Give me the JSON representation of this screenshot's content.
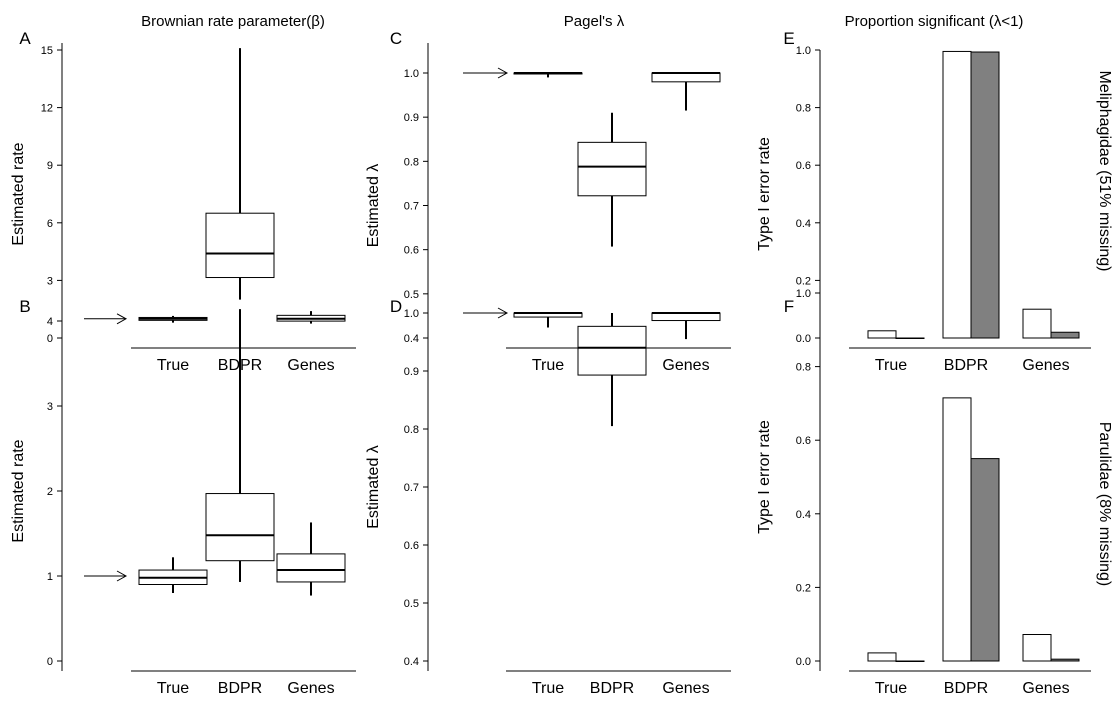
{
  "figure": {
    "column_titles": [
      "Brownian rate parameter(β)",
      "Pagel's λ",
      "Proportion significant (λ<1)"
    ],
    "row_labels": [
      "Meliphagidae (51% missing)",
      "Parulidae (8% missing)"
    ],
    "colors": {
      "line": "#000000",
      "bar_open": "#ffffff",
      "bar_filled": "#808080"
    }
  },
  "chart_data": [
    {
      "panel": "A",
      "type": "box",
      "ylabel": "Estimated rate",
      "categories": [
        "True",
        "BDPR",
        "Genes"
      ],
      "ylim": [
        -0.2,
        15.5
      ],
      "yticks": [
        0,
        3,
        6,
        9,
        12,
        15
      ],
      "true_value": 1,
      "boxes": [
        {
          "whisker_low": 0.8,
          "q1": 0.92,
          "median": 1.0,
          "q3": 1.07,
          "whisker_high": 1.15
        },
        {
          "whisker_low": 2.0,
          "q1": 3.15,
          "median": 4.4,
          "q3": 6.5,
          "whisker_high": 15.1
        },
        {
          "whisker_low": 0.75,
          "q1": 0.88,
          "median": 1.0,
          "q3": 1.18,
          "whisker_high": 1.4
        }
      ]
    },
    {
      "panel": "B",
      "type": "box",
      "ylabel": "Estimated rate",
      "categories": [
        "True",
        "BDPR",
        "Genes"
      ],
      "ylim": [
        -0.1,
        4.7
      ],
      "yticks": [
        0,
        1,
        2,
        3,
        4
      ],
      "true_value": 1,
      "boxes": [
        {
          "whisker_low": 0.8,
          "q1": 0.9,
          "median": 0.98,
          "q3": 1.07,
          "whisker_high": 1.22
        },
        {
          "whisker_low": 0.93,
          "q1": 1.18,
          "median": 1.48,
          "q3": 1.97,
          "whisker_high": 4.14
        },
        {
          "whisker_low": 0.77,
          "q1": 0.93,
          "median": 1.07,
          "q3": 1.26,
          "whisker_high": 1.63
        }
      ]
    },
    {
      "panel": "C",
      "type": "box",
      "ylabel": "Estimated λ",
      "categories": [
        "True",
        "BDPR",
        "Genes"
      ],
      "ylim": [
        0.385,
        1.065
      ],
      "yticks": [
        0.4,
        0.5,
        0.6,
        0.7,
        0.8,
        0.9,
        1.0
      ],
      "true_value": 1,
      "boxes": [
        {
          "whisker_low": 0.99,
          "q1": 0.998,
          "median": 1.0,
          "q3": 1.0,
          "whisker_high": 1.0
        },
        {
          "whisker_low": 0.607,
          "q1": 0.722,
          "median": 0.788,
          "q3": 0.843,
          "whisker_high": 0.91
        },
        {
          "whisker_low": 0.915,
          "q1": 0.98,
          "median": 1.0,
          "q3": 1.0,
          "whisker_high": 1.0
        }
      ]
    },
    {
      "panel": "D",
      "type": "box",
      "ylabel": "Estimated λ",
      "categories": [
        "True",
        "BDPR",
        "Genes"
      ],
      "ylim": [
        0.385,
        1.065
      ],
      "yticks": [
        0.4,
        0.5,
        0.6,
        0.7,
        0.8,
        0.9,
        1.0
      ],
      "true_value": 1,
      "boxes": [
        {
          "whisker_low": 0.975,
          "q1": 0.993,
          "median": 1.0,
          "q3": 1.0,
          "whisker_high": 1.0
        },
        {
          "whisker_low": 0.805,
          "q1": 0.893,
          "median": 0.94,
          "q3": 0.977,
          "whisker_high": 1.0
        },
        {
          "whisker_low": 0.955,
          "q1": 0.987,
          "median": 1.0,
          "q3": 1.0,
          "whisker_high": 1.0
        }
      ]
    },
    {
      "panel": "E",
      "type": "bar",
      "ylabel": "Type I error rate",
      "categories": [
        "True",
        "BDPR",
        "Genes"
      ],
      "ylim": [
        -0.03,
        1.02
      ],
      "yticks": [
        0.0,
        0.2,
        0.4,
        0.6,
        0.8,
        1.0
      ],
      "series": [
        {
          "fill": "open",
          "values": [
            0.025,
            0.995,
            0.1
          ]
        },
        {
          "fill": "gray",
          "values": [
            0.0,
            0.993,
            0.02
          ]
        }
      ]
    },
    {
      "panel": "F",
      "type": "bar",
      "ylabel": "Type I error rate",
      "categories": [
        "True",
        "BDPR",
        "Genes"
      ],
      "ylim": [
        -0.03,
        1.02
      ],
      "yticks": [
        0.0,
        0.2,
        0.4,
        0.6,
        0.8,
        1.0
      ],
      "series": [
        {
          "fill": "open",
          "values": [
            0.022,
            0.715,
            0.072
          ]
        },
        {
          "fill": "gray",
          "values": [
            0.0,
            0.55,
            0.005
          ]
        }
      ]
    }
  ]
}
